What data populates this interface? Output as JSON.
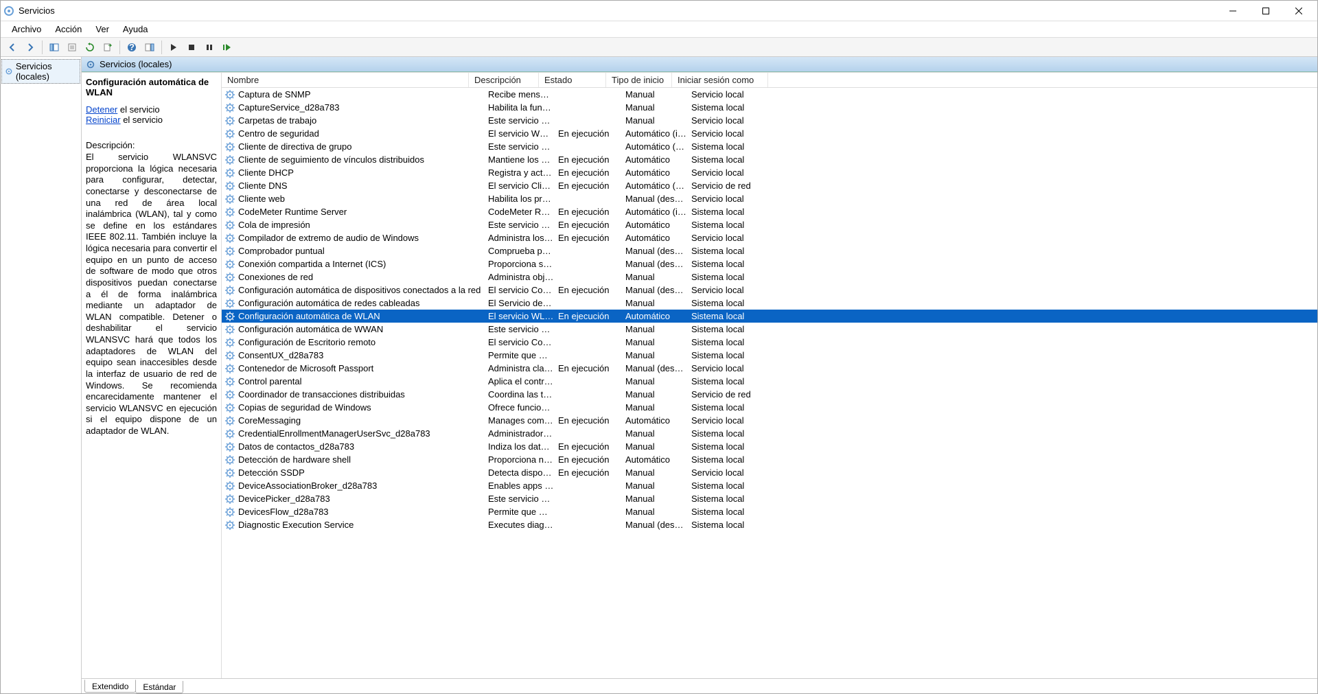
{
  "window": {
    "title": "Servicios"
  },
  "menu": {
    "archivo": "Archivo",
    "accion": "Acción",
    "ver": "Ver",
    "ayuda": "Ayuda"
  },
  "tree": {
    "root": "Servicios (locales)"
  },
  "panel": {
    "header": "Servicios (locales)"
  },
  "detail": {
    "title": "Configuración automática de WLAN",
    "stop_link": "Detener",
    "stop_suffix": " el servicio",
    "restart_link": "Reiniciar",
    "restart_suffix": " el servicio",
    "desc_label": "Descripción:",
    "desc": "El servicio WLANSVC proporciona la lógica necesaria para configurar, detectar, conectarse y desconectarse de una red de área local inalámbrica (WLAN), tal y como se define en los estándares IEEE 802.11. También incluye la lógica necesaria para convertir el equipo en un punto de acceso de software de modo que otros dispositivos puedan conectarse a él de forma inalámbrica mediante un adaptador de WLAN compatible. Detener o deshabilitar el servicio WLANSVC hará que todos los adaptadores de WLAN del equipo sean inaccesibles desde la interfaz de usuario de red de Windows. Se recomienda encarecidamente mantener el servicio WLANSVC en ejecución si el equipo dispone de un adaptador de WLAN."
  },
  "columns": {
    "name": "Nombre",
    "desc": "Descripción",
    "estado": "Estado",
    "tipo": "Tipo de inicio",
    "login": "Iniciar sesión como"
  },
  "col_widths": {
    "name": 358,
    "desc": 102,
    "estado": 98,
    "tipo": 96,
    "login": 130
  },
  "selected_index": 17,
  "services": [
    {
      "n": "Captura de SNMP",
      "d": "Recibe mensaje...",
      "e": "",
      "t": "Manual",
      "l": "Servicio local"
    },
    {
      "n": "CaptureService_d28a783",
      "d": "Habilita la funci...",
      "e": "",
      "t": "Manual",
      "l": "Sistema local"
    },
    {
      "n": "Carpetas de trabajo",
      "d": "Este servicio sin...",
      "e": "",
      "t": "Manual",
      "l": "Servicio local"
    },
    {
      "n": "Centro de seguridad",
      "d": "El servicio WSCS...",
      "e": "En ejecución",
      "t": "Automático (in...",
      "l": "Servicio local"
    },
    {
      "n": "Cliente de directiva de grupo",
      "d": "Este servicio es r...",
      "e": "",
      "t": "Automático (d...",
      "l": "Sistema local"
    },
    {
      "n": "Cliente de seguimiento de vínculos distribuidos",
      "d": "Mantiene los vi...",
      "e": "En ejecución",
      "t": "Automático",
      "l": "Sistema local"
    },
    {
      "n": "Cliente DHCP",
      "d": "Registra y actua...",
      "e": "En ejecución",
      "t": "Automático",
      "l": "Servicio local"
    },
    {
      "n": "Cliente DNS",
      "d": "El servicio Client...",
      "e": "En ejecución",
      "t": "Automático (d...",
      "l": "Servicio de red"
    },
    {
      "n": "Cliente web",
      "d": "Habilita los pro...",
      "e": "",
      "t": "Manual (desen...",
      "l": "Servicio local"
    },
    {
      "n": "CodeMeter Runtime Server",
      "d": "CodeMeter Run...",
      "e": "En ejecución",
      "t": "Automático (in...",
      "l": "Sistema local"
    },
    {
      "n": "Cola de impresión",
      "d": "Este servicio po...",
      "e": "En ejecución",
      "t": "Automático",
      "l": "Sistema local"
    },
    {
      "n": "Compilador de extremo de audio de Windows",
      "d": "Administra los d...",
      "e": "En ejecución",
      "t": "Automático",
      "l": "Servicio local"
    },
    {
      "n": "Comprobador puntual",
      "d": "Comprueba pos...",
      "e": "",
      "t": "Manual (desen...",
      "l": "Sistema local"
    },
    {
      "n": "Conexión compartida a Internet (ICS)",
      "d": "Proporciona ser...",
      "e": "",
      "t": "Manual (desen...",
      "l": "Sistema local"
    },
    {
      "n": "Conexiones de red",
      "d": "Administra obje...",
      "e": "",
      "t": "Manual",
      "l": "Sistema local"
    },
    {
      "n": "Configuración automática de dispositivos conectados a la red",
      "d": "El servicio Confi...",
      "e": "En ejecución",
      "t": "Manual (desen...",
      "l": "Servicio local"
    },
    {
      "n": "Configuración automática de redes cableadas",
      "d": "El Servicio de co...",
      "e": "",
      "t": "Manual",
      "l": "Sistema local"
    },
    {
      "n": "Configuración automática de WLAN",
      "d": "El servicio WLA...",
      "e": "En ejecución",
      "t": "Automático",
      "l": "Sistema local"
    },
    {
      "n": "Configuración automática de WWAN",
      "d": "Este servicio ad...",
      "e": "",
      "t": "Manual",
      "l": "Sistema local"
    },
    {
      "n": "Configuración de Escritorio remoto",
      "d": "El servicio Confi...",
      "e": "",
      "t": "Manual",
      "l": "Sistema local"
    },
    {
      "n": "ConsentUX_d28a783",
      "d": "Permite que Co...",
      "e": "",
      "t": "Manual",
      "l": "Sistema local"
    },
    {
      "n": "Contenedor de Microsoft Passport",
      "d": "Administra clav...",
      "e": "En ejecución",
      "t": "Manual (desen...",
      "l": "Servicio local"
    },
    {
      "n": "Control parental",
      "d": "Aplica el control...",
      "e": "",
      "t": "Manual",
      "l": "Sistema local"
    },
    {
      "n": "Coordinador de transacciones distribuidas",
      "d": "Coordina las tra...",
      "e": "",
      "t": "Manual",
      "l": "Servicio de red"
    },
    {
      "n": "Copias de seguridad de Windows",
      "d": "Ofrece funciona...",
      "e": "",
      "t": "Manual",
      "l": "Sistema local"
    },
    {
      "n": "CoreMessaging",
      "d": "Manages comm...",
      "e": "En ejecución",
      "t": "Automático",
      "l": "Servicio local"
    },
    {
      "n": "CredentialEnrollmentManagerUserSvc_d28a783",
      "d": "Administrador d...",
      "e": "",
      "t": "Manual",
      "l": "Sistema local"
    },
    {
      "n": "Datos de contactos_d28a783",
      "d": "Indiza los datos ...",
      "e": "En ejecución",
      "t": "Manual",
      "l": "Sistema local"
    },
    {
      "n": "Detección de hardware shell",
      "d": "Proporciona not...",
      "e": "En ejecución",
      "t": "Automático",
      "l": "Sistema local"
    },
    {
      "n": "Detección SSDP",
      "d": "Detecta disposit...",
      "e": "En ejecución",
      "t": "Manual",
      "l": "Servicio local"
    },
    {
      "n": "DeviceAssociationBroker_d28a783",
      "d": "Enables apps to...",
      "e": "",
      "t": "Manual",
      "l": "Sistema local"
    },
    {
      "n": "DevicePicker_d28a783",
      "d": "Este servicio de ...",
      "e": "",
      "t": "Manual",
      "l": "Sistema local"
    },
    {
      "n": "DevicesFlow_d28a783",
      "d": "Permite que Co...",
      "e": "",
      "t": "Manual",
      "l": "Sistema local"
    },
    {
      "n": "Diagnostic Execution Service",
      "d": "Executes diagno...",
      "e": "",
      "t": "Manual (desen...",
      "l": "Sistema local"
    }
  ],
  "tabs": {
    "extended": "Extendido",
    "standard": "Estándar"
  },
  "colors": {
    "selection": "#0a64c4",
    "header_grad_top": "#d4e6f6",
    "header_grad_bot": "#b5d2ec",
    "link": "#0645cc"
  }
}
